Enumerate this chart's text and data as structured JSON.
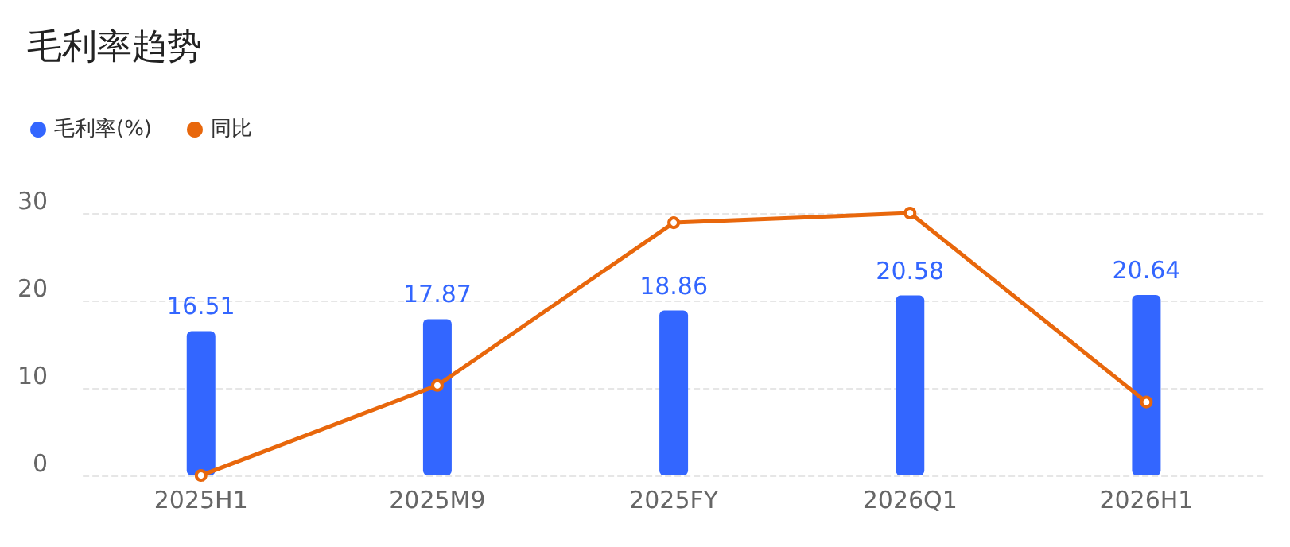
{
  "chart_data": {
    "type": "bar",
    "title": "毛利率趋势",
    "categories": [
      "2025H1",
      "2025M9",
      "2025FY",
      "2026Q1",
      "2026H1"
    ],
    "series": [
      {
        "name": "毛利率(%)",
        "color": "#3366ff",
        "values": [
          16.51,
          17.87,
          18.86,
          20.58,
          20.64
        ],
        "value_labels": [
          "16.51",
          "17.87",
          "18.86",
          "20.58",
          "20.64"
        ]
      },
      {
        "name": "同比",
        "type": "line",
        "color": "#e8670c",
        "values": [
          0,
          10.3,
          28.9,
          30,
          8.4
        ]
      }
    ],
    "ylim": [
      0,
      30
    ],
    "yticks": [
      0,
      10,
      20,
      30
    ],
    "grid": "y",
    "legend": "top left",
    "marker": "circle",
    "line_style": "solid"
  }
}
